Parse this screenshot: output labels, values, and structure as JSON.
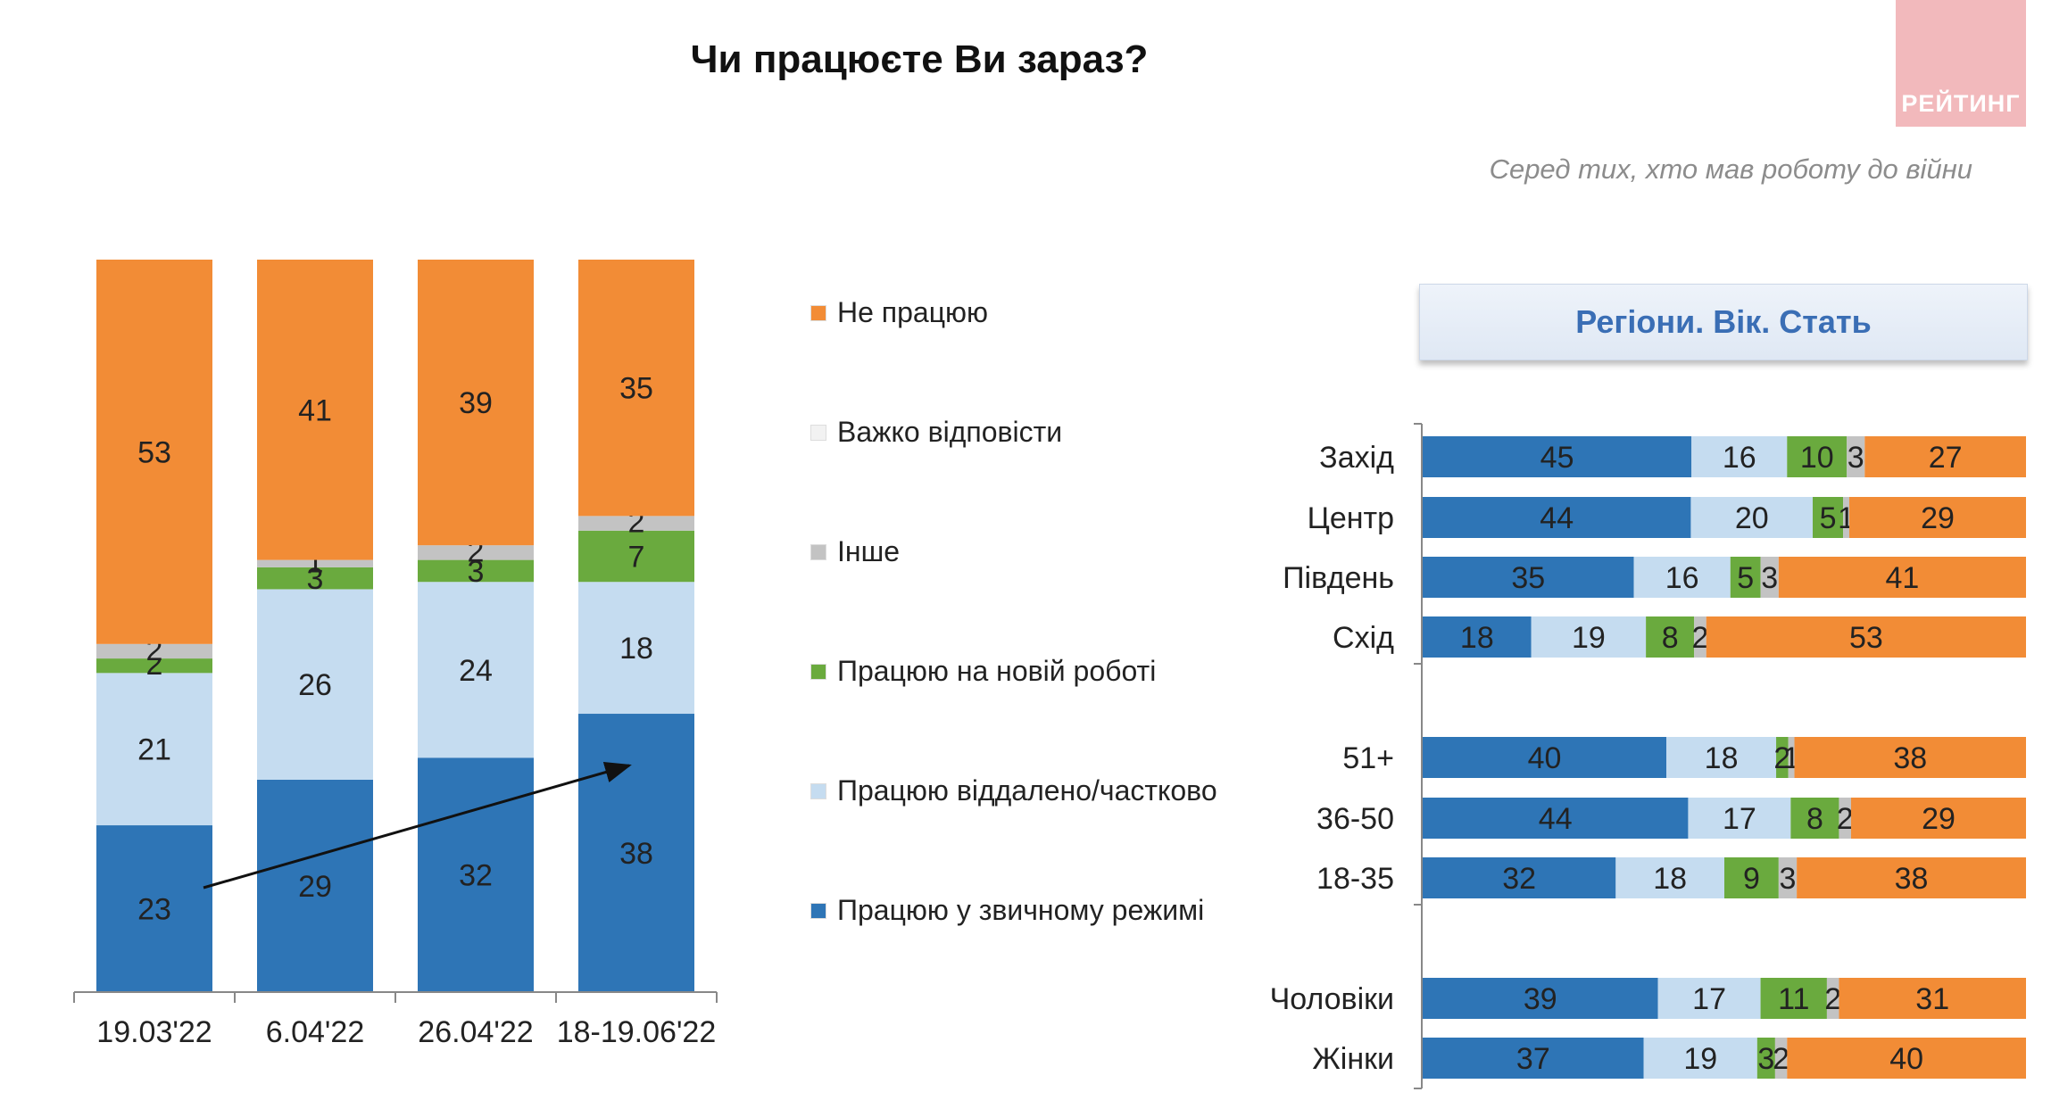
{
  "title": "Чи працюєте Ви зараз?",
  "subtitle": "Серед тих, хто мав роботу до війни",
  "logo_text": "РЕЙТИНГ",
  "panel_header": "Регіони. Вік. Стать",
  "colors": {
    "not_working": "#f28c36",
    "hard_to_say": "#f2f2f2",
    "other": "#c3c3c3",
    "new_job": "#6aaa3e",
    "remote": "#c5dcf0",
    "usual": "#2e75b6"
  },
  "legend": [
    {
      "key": "not_working",
      "label": "Не працюю"
    },
    {
      "key": "hard_to_say",
      "label": "Важко відповісти"
    },
    {
      "key": "other",
      "label": "Інше"
    },
    {
      "key": "new_job",
      "label": "Працюю на новій роботі"
    },
    {
      "key": "remote",
      "label": "Працюю віддалено/частково"
    },
    {
      "key": "usual",
      "label": "Працюю у звичному режимі"
    }
  ],
  "chart_data": [
    {
      "type": "bar",
      "stacked": true,
      "orientation": "vertical",
      "categories": [
        "19.03'22",
        "6.04'22",
        "26.04'22",
        "18-19.06'22"
      ],
      "series": [
        {
          "name": "Працюю у звичному режимі",
          "key": "usual",
          "values": [
            23,
            29,
            32,
            38
          ]
        },
        {
          "name": "Працюю віддалено/частково",
          "key": "remote",
          "values": [
            21,
            26,
            24,
            18
          ]
        },
        {
          "name": "Працюю на новій роботі",
          "key": "new_job",
          "values": [
            2,
            3,
            3,
            7
          ]
        },
        {
          "name": "Інше",
          "key": "other",
          "values": [
            2,
            1,
            2,
            2
          ]
        },
        {
          "name": "Важко відповісти",
          "key": "hard_to_say",
          "values": [
            0,
            0,
            0,
            0
          ]
        },
        {
          "name": "Не працюю",
          "key": "not_working",
          "values": [
            53,
            41,
            39,
            35
          ]
        }
      ],
      "annotation": "trend arrow rising from 19.03'22 to 18-19.06'22 on the usual-mode segment",
      "ylim": [
        0,
        100
      ]
    },
    {
      "type": "bar",
      "stacked": true,
      "orientation": "horizontal",
      "title": "Регіони. Вік. Стать",
      "categories": [
        "Захід",
        "Центр",
        "Південь",
        "Схід",
        "51+",
        "36-50",
        "18-35",
        "Чоловіки",
        "Жінки"
      ],
      "groups": [
        [
          "Захід",
          "Центр",
          "Південь",
          "Схід"
        ],
        [
          "51+",
          "36-50",
          "18-35"
        ],
        [
          "Чоловіки",
          "Жінки"
        ]
      ],
      "series": [
        {
          "name": "Працюю у звичному режимі",
          "key": "usual",
          "values": [
            45,
            44,
            35,
            18,
            40,
            44,
            32,
            39,
            37
          ]
        },
        {
          "name": "Працюю віддалено/частково",
          "key": "remote",
          "values": [
            16,
            20,
            16,
            19,
            18,
            17,
            18,
            17,
            19
          ]
        },
        {
          "name": "Працюю на новій роботі",
          "key": "new_job",
          "values": [
            10,
            5,
            5,
            8,
            2,
            8,
            9,
            11,
            3
          ]
        },
        {
          "name": "Інше",
          "key": "other",
          "values": [
            3,
            1,
            3,
            2,
            1,
            2,
            3,
            2,
            2
          ]
        },
        {
          "name": "Не працюю",
          "key": "not_working",
          "values": [
            27,
            29,
            41,
            53,
            38,
            29,
            38,
            31,
            40
          ]
        }
      ],
      "xlim": [
        0,
        100
      ]
    }
  ]
}
